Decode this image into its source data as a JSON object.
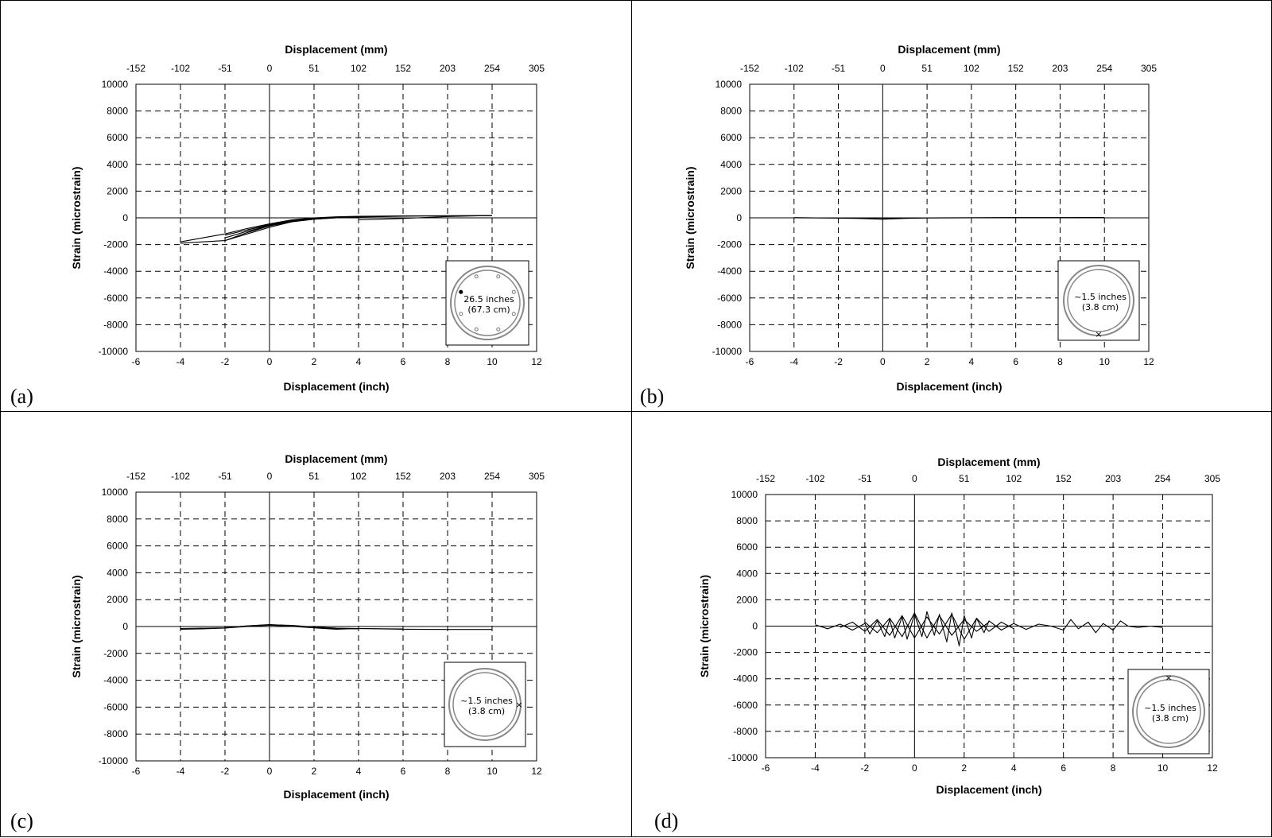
{
  "chart_data": [
    {
      "type": "line",
      "panel_label": "(a)",
      "xlabel": "Displacement (inch)",
      "x2label": "Displacement (mm)",
      "ylabel": "Strain (microstrain)",
      "xlim": [
        -6,
        12
      ],
      "ylim": [
        -10000,
        10000
      ],
      "x_ticks": [
        "-6",
        "-4",
        "-2",
        "0",
        "2",
        "4",
        "6",
        "8",
        "10",
        "12"
      ],
      "x2_ticks": [
        "-152",
        "-102",
        "-51",
        "0",
        "51",
        "102",
        "152",
        "203",
        "254",
        "305"
      ],
      "y_ticks": [
        "-10000",
        "-8000",
        "-6000",
        "-4000",
        "-2000",
        "0",
        "2000",
        "4000",
        "6000",
        "8000",
        "10000"
      ],
      "grid": true,
      "inset": {
        "line1": "26.5 inches",
        "line2": "(67.3 cm)",
        "marker": "dot-left-top"
      },
      "series": [
        {
          "x": [
            -4.0,
            -3.0,
            -2.0,
            -1.0,
            0.0,
            1.0,
            2.0,
            3.0,
            4.0,
            6.0,
            8.0,
            10.0
          ],
          "y": [
            -1800,
            -1500,
            -1200,
            -800,
            -450,
            -150,
            0,
            80,
            120,
            150,
            160,
            170
          ]
        },
        {
          "x": [
            -4.0,
            -3.0,
            -2.0,
            -1.0,
            0.0,
            1.0,
            2.0,
            3.0,
            4.0,
            6.0,
            8.0,
            10.0
          ],
          "y": [
            -1900,
            -1800,
            -1700,
            -1200,
            -700,
            -300,
            -100,
            0,
            60,
            120,
            150,
            160
          ]
        },
        {
          "x": [
            -2.0,
            -1.5,
            -1.0,
            -0.5,
            0.0,
            1.0,
            2.0,
            3.0,
            4.0
          ],
          "y": [
            -1700,
            -1400,
            -1100,
            -800,
            -550,
            -250,
            -80,
            20,
            60
          ]
        },
        {
          "x": [
            -2.0,
            -1.0,
            0.0,
            1.0,
            2.0,
            3.0,
            4.0
          ],
          "y": [
            -1500,
            -1000,
            -600,
            -300,
            -100,
            0,
            50
          ]
        },
        {
          "x": [
            -1.0,
            -0.5,
            0.0,
            0.5,
            1.0,
            2.0,
            3.0
          ],
          "y": [
            -1100,
            -850,
            -600,
            -400,
            -250,
            -80,
            30
          ]
        },
        {
          "x": [
            -1.0,
            0.0,
            1.0,
            2.0,
            3.0
          ],
          "y": [
            -900,
            -500,
            -200,
            -50,
            40
          ]
        },
        {
          "x": [
            -2.0,
            -1.0,
            0.0,
            1.0,
            2.0,
            3.0,
            4.0,
            6.0
          ],
          "y": [
            -1300,
            -900,
            -550,
            -250,
            -50,
            50,
            100,
            130
          ]
        },
        {
          "x": [
            4.0,
            6.0,
            8.0,
            10.0
          ],
          "y": [
            -150,
            -50,
            100,
            170
          ]
        }
      ]
    },
    {
      "type": "line",
      "panel_label": "(b)",
      "xlabel": "Displacement (inch)",
      "x2label": "Displacement (mm)",
      "ylabel": "Strain (microstrain)",
      "xlim": [
        -6,
        12
      ],
      "ylim": [
        -10000,
        10000
      ],
      "x_ticks": [
        "-6",
        "-4",
        "-2",
        "0",
        "2",
        "4",
        "6",
        "8",
        "10",
        "12"
      ],
      "x2_ticks": [
        "-152",
        "-102",
        "-51",
        "0",
        "51",
        "102",
        "152",
        "203",
        "254",
        "305"
      ],
      "y_ticks": [
        "-10000",
        "-8000",
        "-6000",
        "-4000",
        "-2000",
        "0",
        "2000",
        "4000",
        "6000",
        "8000",
        "10000"
      ],
      "grid": true,
      "inset": {
        "line1": "~1.5 inches",
        "line2": "(3.8 cm)",
        "marker": "x-bottom"
      },
      "series": [
        {
          "x": [
            -4.0,
            -3.0,
            -2.0,
            -1.0,
            0.0,
            1.0,
            2.0,
            4.0,
            6.0,
            8.0,
            10.0
          ],
          "y": [
            20,
            0,
            -20,
            -50,
            -100,
            -40,
            -10,
            0,
            10,
            10,
            20
          ]
        },
        {
          "x": [
            -4.0,
            -2.0,
            -1.0,
            0.0,
            0.5,
            1.0,
            2.0,
            4.0,
            6.0,
            8.0,
            10.0
          ],
          "y": [
            0,
            -10,
            -30,
            -80,
            -40,
            -20,
            0,
            10,
            20,
            20,
            30
          ]
        }
      ]
    },
    {
      "type": "line",
      "panel_label": "(c)",
      "xlabel": "Displacement (inch)",
      "x2label": "Displacement (mm)",
      "ylabel": "Strain (microstrain)",
      "xlim": [
        -6,
        12
      ],
      "ylim": [
        -10000,
        10000
      ],
      "x_ticks": [
        "-6",
        "-4",
        "-2",
        "0",
        "2",
        "4",
        "6",
        "8",
        "10",
        "12"
      ],
      "x2_ticks": [
        "-152",
        "-102",
        "-51",
        "0",
        "51",
        "102",
        "152",
        "203",
        "254",
        "305"
      ],
      "y_ticks": [
        "-10000",
        "-8000",
        "-6000",
        "-4000",
        "-2000",
        "0",
        "2000",
        "4000",
        "6000",
        "8000",
        "10000"
      ],
      "grid": true,
      "inset": {
        "line1": "~1.5 inches",
        "line2": "(3.8 cm)",
        "marker": "x-right"
      },
      "series": [
        {
          "x": [
            -4.0,
            -3.0,
            -2.0,
            -1.0,
            -0.5,
            0.0,
            0.5,
            1.0,
            2.0,
            3.0,
            4.0,
            6.0,
            8.0,
            10.0
          ],
          "y": [
            -200,
            -180,
            -120,
            0,
            80,
            120,
            100,
            50,
            -50,
            -120,
            -150,
            -200,
            -220,
            -220
          ]
        },
        {
          "x": [
            -4.0,
            -2.0,
            -1.0,
            0.0,
            1.0,
            2.0,
            3.0,
            4.0
          ],
          "y": [
            -150,
            -100,
            50,
            150,
            60,
            -80,
            -150,
            -180
          ]
        },
        {
          "x": [
            -2.0,
            -1.0,
            0.0,
            1.0,
            2.0,
            3.0
          ],
          "y": [
            -80,
            40,
            130,
            80,
            -40,
            -120
          ]
        },
        {
          "x": [
            -1.0,
            0.0,
            1.0,
            2.0,
            3.0,
            4.0,
            6.0
          ],
          "y": [
            0,
            100,
            20,
            -100,
            -200,
            -150,
            -180
          ]
        }
      ]
    },
    {
      "type": "line",
      "panel_label": "(d)",
      "xlabel": "Displacement (inch)",
      "x2label": "Displacement (mm)",
      "ylabel": "Strain (microstrain)",
      "xlim": [
        -6,
        12
      ],
      "ylim": [
        -10000,
        10000
      ],
      "x_ticks": [
        "-6",
        "-4",
        "-2",
        "0",
        "2",
        "4",
        "6",
        "8",
        "10",
        "12"
      ],
      "x2_ticks": [
        "-152",
        "-102",
        "-51",
        "0",
        "51",
        "102",
        "152",
        "203",
        "254",
        "305"
      ],
      "y_ticks": [
        "-10000",
        "-8000",
        "-6000",
        "-4000",
        "-2000",
        "0",
        "2000",
        "4000",
        "6000",
        "8000",
        "10000"
      ],
      "grid": true,
      "inset": {
        "line1": "~1.5 inches",
        "line2": "(3.8 cm)",
        "marker": "x-top"
      },
      "series": [
        {
          "x": [
            -4.0,
            -3.5,
            -3.0,
            -2.5,
            -2.0,
            -1.8,
            -1.5,
            -1.2,
            -1.0,
            -0.8,
            -0.5,
            -0.3,
            0.0,
            0.3,
            0.5,
            0.8,
            1.0,
            1.3,
            1.5,
            1.8,
            2.0,
            2.3,
            2.5,
            2.8,
            3.0,
            3.5,
            4.0,
            4.5,
            5.0,
            5.5,
            6.0,
            6.3,
            6.6,
            7.0,
            7.3,
            7.6,
            8.0,
            8.3,
            8.6,
            9.0,
            9.5,
            10.0
          ],
          "y": [
            100,
            -200,
            150,
            -300,
            200,
            -600,
            400,
            -800,
            500,
            -900,
            700,
            -1000,
            900,
            -800,
            1100,
            -700,
            900,
            -1200,
            1000,
            -1500,
            800,
            -900,
            600,
            -500,
            400,
            -300,
            200,
            -250,
            150,
            0,
            -300,
            500,
            -200,
            300,
            -500,
            200,
            -300,
            400,
            0,
            -100,
            0,
            -100
          ]
        },
        {
          "x": [
            -3.0,
            -2.5,
            -2.0,
            -1.5,
            -1.0,
            -0.5,
            0.0,
            0.5,
            1.0,
            1.5,
            2.0,
            2.5,
            3.0,
            3.5,
            4.0
          ],
          "y": [
            -100,
            300,
            -400,
            500,
            -700,
            800,
            -900,
            700,
            -600,
            900,
            -1000,
            600,
            -400,
            300,
            -200
          ]
        },
        {
          "x": [
            -2.0,
            -1.5,
            -1.0,
            -0.5,
            0.0,
            0.5,
            1.0,
            1.5,
            2.0,
            2.5,
            3.0
          ],
          "y": [
            300,
            -500,
            600,
            -800,
            1000,
            -900,
            800,
            -700,
            500,
            -400,
            300
          ]
        }
      ]
    }
  ]
}
